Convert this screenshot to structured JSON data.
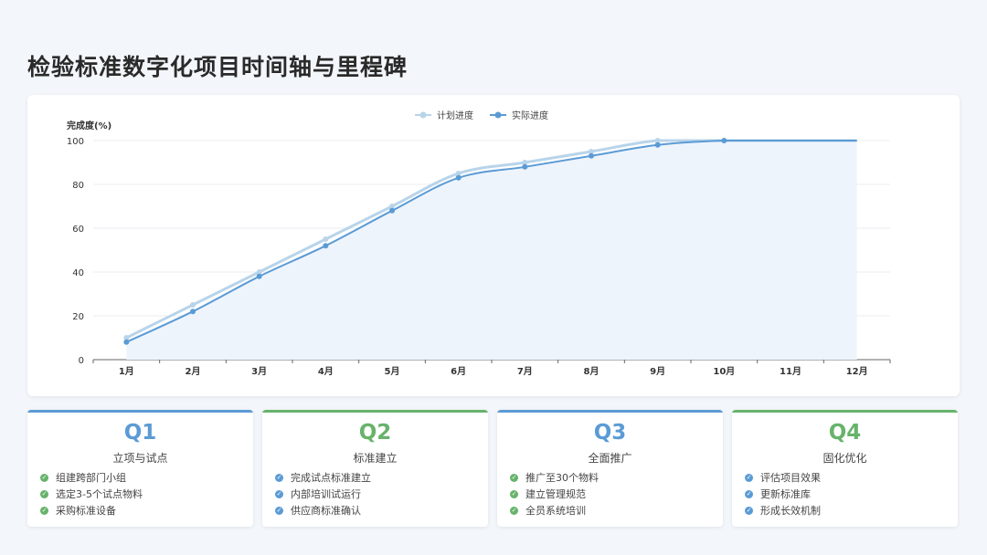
{
  "page": {
    "title": "检验标准数字化项目时间轴与里程碑"
  },
  "chart_data": {
    "type": "line",
    "ylabel": "完成度(%)",
    "ylim": [
      0,
      100
    ],
    "yticks": [
      0,
      20,
      40,
      60,
      80,
      100
    ],
    "categories": [
      "1月",
      "2月",
      "3月",
      "4月",
      "5月",
      "6月",
      "7月",
      "8月",
      "9月",
      "10月",
      "11月",
      "12月"
    ],
    "legend_position": "top-center",
    "series": [
      {
        "name": "计划进度",
        "color": "#b8d4ea",
        "values": [
          10,
          25,
          40,
          55,
          70,
          85,
          90,
          95,
          100,
          100,
          100,
          100
        ]
      },
      {
        "name": "实际进度",
        "color": "#5b9bd5",
        "values": [
          8,
          22,
          38,
          52,
          68,
          83,
          88,
          93,
          98,
          100,
          100,
          100
        ]
      }
    ],
    "area_fill": "#eef4fc"
  },
  "quarters": [
    {
      "label": "Q1",
      "subtitle": "立项与试点",
      "color": "#5b9bd5",
      "check_color": "#67b36b",
      "items": [
        "组建跨部门小组",
        "选定3-5个试点物料",
        "采购标准设备"
      ]
    },
    {
      "label": "Q2",
      "subtitle": "标准建立",
      "color": "#67b36b",
      "check_color": "#5b9bd5",
      "items": [
        "完成试点标准建立",
        "内部培训试运行",
        "供应商标准确认"
      ]
    },
    {
      "label": "Q3",
      "subtitle": "全面推广",
      "color": "#5b9bd5",
      "check_color": "#67b36b",
      "items": [
        "推广至30个物料",
        "建立管理规范",
        "全员系统培训"
      ]
    },
    {
      "label": "Q4",
      "subtitle": "固化优化",
      "color": "#67b36b",
      "check_color": "#5b9bd5",
      "items": [
        "评估项目效果",
        "更新标准库",
        "形成长效机制"
      ]
    }
  ]
}
